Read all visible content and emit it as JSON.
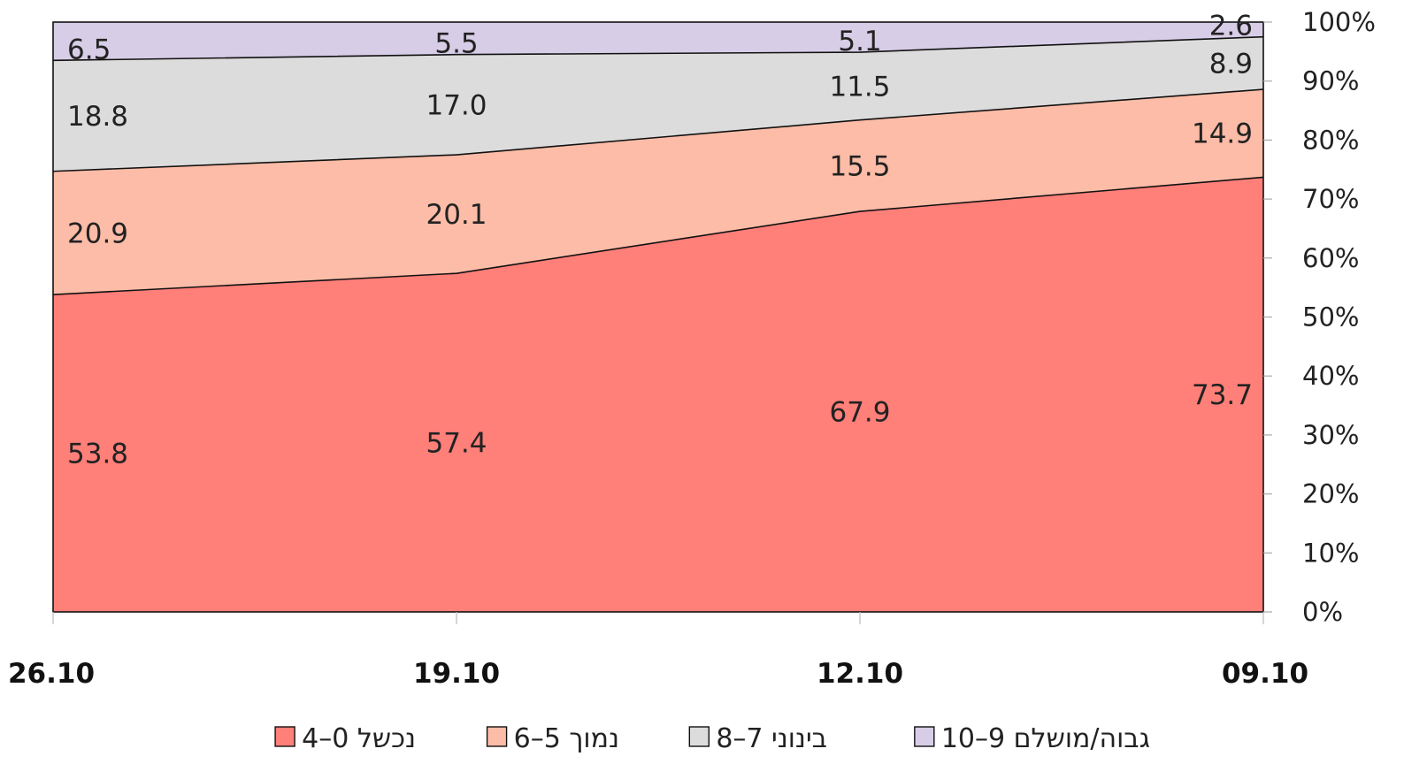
{
  "chart_data": {
    "type": "area",
    "stacked": true,
    "percent": true,
    "categories": [
      "09.10",
      "12.10",
      "19.10",
      "26.10"
    ],
    "x_axis_reversed": true,
    "y_axis_position": "right",
    "ylim": [
      0,
      100
    ],
    "yticks": [
      "0%",
      "10%",
      "20%",
      "30%",
      "40%",
      "50%",
      "60%",
      "70%",
      "80%",
      "90%",
      "100%"
    ],
    "series": [
      {
        "name": "נכשל 0–4",
        "color": "#ff7f79",
        "values": [
          73.7,
          67.9,
          57.4,
          53.8
        ]
      },
      {
        "name": "נמוך 5–6",
        "color": "#fdbca7",
        "values": [
          14.9,
          15.5,
          20.1,
          20.9
        ]
      },
      {
        "name": "בינוני 7–8",
        "color": "#dcdcdc",
        "values": [
          8.9,
          11.5,
          17.0,
          18.8
        ]
      },
      {
        "name": "גבוה/מושלם 9–10",
        "color": "#d7cde6",
        "values": [
          2.6,
          5.1,
          5.5,
          6.5
        ]
      }
    ],
    "data_labels": [
      [
        "73.7",
        "67.9",
        "57.4",
        "53.8"
      ],
      [
        "14.9",
        "15.5",
        "20.1",
        "20.9"
      ],
      [
        "8.9",
        "11.5",
        "17.0",
        "18.8"
      ],
      [
        "2.6",
        "5.1",
        "5.5",
        "6.5"
      ]
    ],
    "legend_position": "bottom",
    "grid": false
  }
}
